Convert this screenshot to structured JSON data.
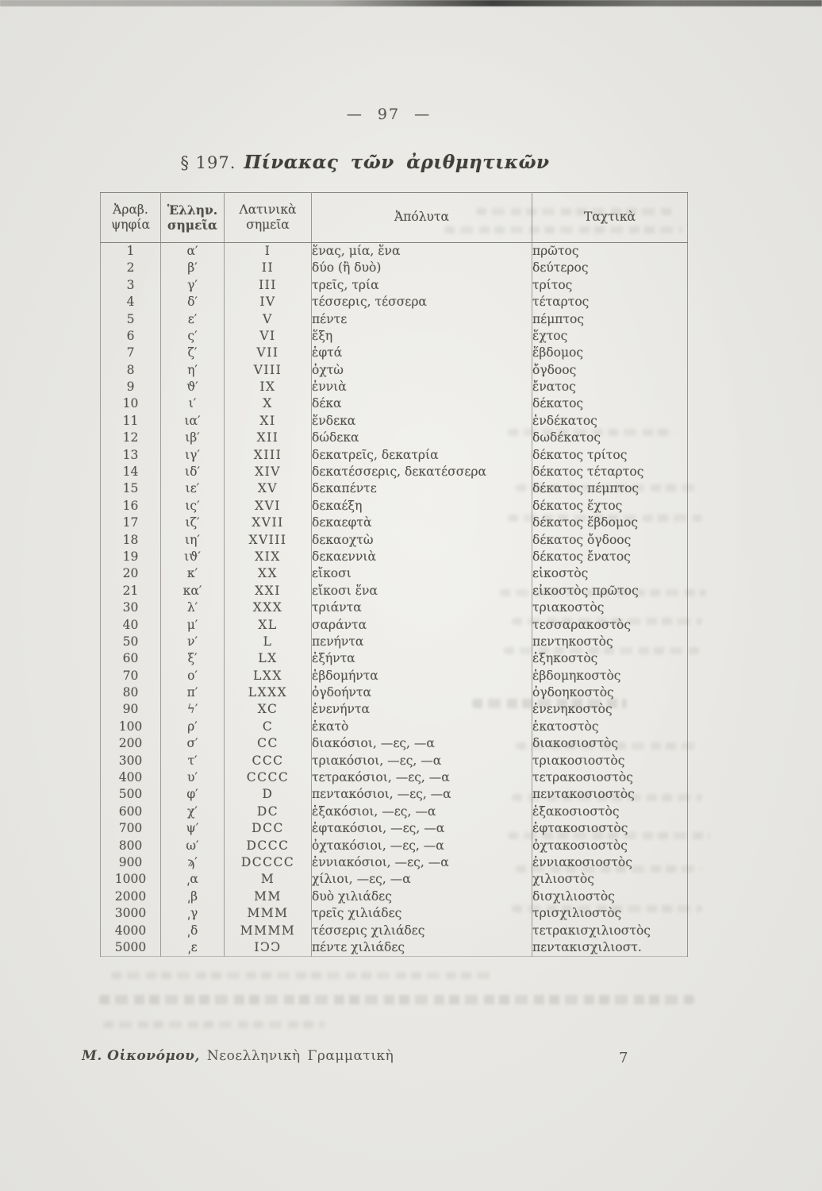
{
  "page": {
    "top_page_number": "— 97 —",
    "section_heading": {
      "prefix": "§ 197.",
      "title": "Πίνακας τῶν ἀριθμητικῶν"
    },
    "footer": {
      "author": "Μ. Οἰκονόμου,",
      "book_title": "Νεοελληνικὴ Γραμματικὴ",
      "page_number": "7"
    }
  },
  "table": {
    "column_headers": [
      {
        "label": "Ἀραβ.\nψηφία"
      },
      {
        "label": "Ἑλλην.\nσημεῖα"
      },
      {
        "label": "Λατινικὰ\nσημεῖα"
      },
      {
        "label": "Ἀπόλυτα"
      },
      {
        "label": "Ταχτικὰ"
      }
    ],
    "rows": [
      [
        "1",
        "α′",
        "I",
        "ἕνας, μία, ἕνα",
        "πρῶτος"
      ],
      [
        "2",
        "β′",
        "II",
        "δύο (ἢ δυὸ)",
        "δεύτερος"
      ],
      [
        "3",
        "γ′",
        "III",
        "τρεῖς, τρία",
        "τρίτος"
      ],
      [
        "4",
        "δ′",
        "IV",
        "τέσσερις, τέσσερα",
        "τέταρτος"
      ],
      [
        "5",
        "ε′",
        "V",
        "πέντε",
        "πέμπτος"
      ],
      [
        "6",
        "ς′",
        "VI",
        "ἕξη",
        "ἕχτος"
      ],
      [
        "7",
        "ζ′",
        "VII",
        "ἑφτά",
        "ἕβδομος"
      ],
      [
        "8",
        "η′",
        "VIII",
        "ὀχτὼ",
        "ὄγδοος"
      ],
      [
        "9",
        "ϑ′",
        "IX",
        "ἐννιὰ",
        "ἔνατος"
      ],
      [
        "10",
        "ι′",
        "X",
        "δέκα",
        "δέκατος"
      ],
      [
        "11",
        "ια′",
        "XI",
        "ἕνδεκα",
        "ἑνδέκατος"
      ],
      [
        "12",
        "ιβ′",
        "XII",
        "δώδεκα",
        "δωδέκατος"
      ],
      [
        "13",
        "ιγ′",
        "XIII",
        "δεκατρεῖς, δεκατρία",
        "δέκατος τρίτος"
      ],
      [
        "14",
        "ιδ′",
        "XIV",
        "δεκατέσσερις, δεκατέσσερα",
        "δέκατος τέταρτος"
      ],
      [
        "15",
        "ιε′",
        "XV",
        "δεκαπέντε",
        "δέκατος πέμπτος"
      ],
      [
        "16",
        "ις′",
        "XVI",
        "δεκαέξη",
        "δέκατος ἕχτος"
      ],
      [
        "17",
        "ιζ′",
        "XVII",
        "δεκαεφτὰ",
        "δέκατος ἕβδομος"
      ],
      [
        "18",
        "ιη′",
        "XVIII",
        "δεκαοχτὼ",
        "δέκατος ὄγδοος"
      ],
      [
        "19",
        "ιϑ′",
        "XIX",
        "δεκαεννιὰ",
        "δέκατος ἔνατος"
      ],
      [
        "20",
        "κ′",
        "XX",
        "εἴκοσι",
        "εἰκοστὸς"
      ],
      [
        "21",
        "κα′",
        "XXI",
        "εἴκοσι ἕνα",
        "εἰκοστὸς πρῶτος"
      ],
      [
        "30",
        "λ′",
        "XXX",
        "τριάντα",
        "τριακοστὸς"
      ],
      [
        "40",
        "μ′",
        "XL",
        "σαράντα",
        "τεσσαρακοστὸς"
      ],
      [
        "50",
        "ν′",
        "L",
        "πενήντα",
        "πεντηκοστὸς"
      ],
      [
        "60",
        "ξ′",
        "LX",
        "ἑξήντα",
        "ἑξηκοστὸς"
      ],
      [
        "70",
        "ο′",
        "LXX",
        "ἑβδομήντα",
        "ἑβδομηκοστὸς"
      ],
      [
        "80",
        "π′",
        "LXXX",
        "ὀγδοήντα",
        "ὀγδοηκοστὸς"
      ],
      [
        "90",
        "ϟ′",
        "XC",
        "ἐνενήντα",
        "ἐνενηκοστὸς"
      ],
      [
        "100",
        "ρ′",
        "C",
        "ἑκατὸ",
        "ἑκατοστὸς"
      ],
      [
        "200",
        "σ′",
        "CC",
        "διακόσιοι, —ες, —α",
        "διακοσιοστὸς"
      ],
      [
        "300",
        "τ′",
        "CCC",
        "τριακόσιοι, —ες, —α",
        "τριακοσιοστὸς"
      ],
      [
        "400",
        "υ′",
        "CCCC",
        "τετρακόσιοι, —ες, —α",
        "τετρακοσιοστὸς"
      ],
      [
        "500",
        "φ′",
        "D",
        "πεντακόσιοι, —ες, —α",
        "πεντακοσιοστὸς"
      ],
      [
        "600",
        "χ′",
        "DC",
        "ἑξακόσιοι, —ες, —α",
        "ἑξακοσιοστὸς"
      ],
      [
        "700",
        "ψ′",
        "DCC",
        "ἑφτακόσιοι, —ες, —α",
        "ἑφτακοσιοστὸς"
      ],
      [
        "800",
        "ω′",
        "DCCC",
        "ὀχτακόσιοι, —ες, —α",
        "ὀχτακοσιοστὸς"
      ],
      [
        "900",
        "ϡ′",
        "DCCCC",
        "ἐννιακόσιοι, —ες, —α",
        "ἐννιακοσιοστὸς"
      ],
      [
        "1000",
        "͵α",
        "M",
        "χίλιοι, —ες, —α",
        "χιλιοστὸς"
      ],
      [
        "2000",
        "͵β",
        "MM",
        "δυὸ χιλιάδες",
        "δισχιλιοστὸς"
      ],
      [
        "3000",
        "͵γ",
        "MMM",
        "τρεῖς χιλιάδες",
        "τρισχιλιοστὸς"
      ],
      [
        "4000",
        "͵δ",
        "MMMM",
        "τέσσερις χιλιάδες",
        "τετρακισχιλιοστὸς"
      ],
      [
        "5000",
        "͵ε",
        "IϽϽ",
        "πέντε χιλιάδες",
        "πεντακισχιλιοστ."
      ]
    ]
  },
  "colors": {
    "paper": "#e8e7e3",
    "ink": "#4e4d47",
    "rule": "#605f59"
  }
}
